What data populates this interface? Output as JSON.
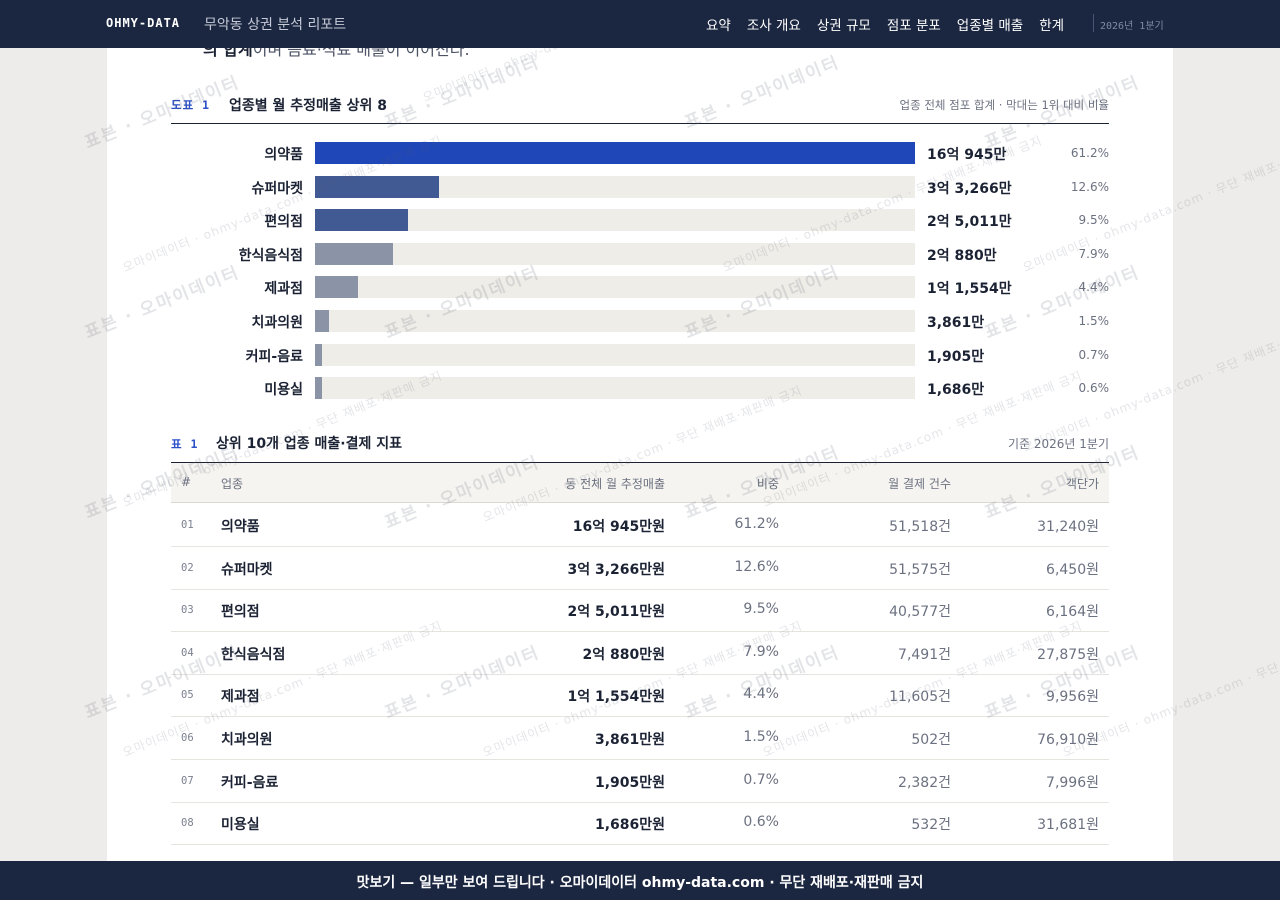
{
  "header": {
    "brand": "OHMY-DATA",
    "report_title": "무악동 상권 분석 리포트",
    "nav": [
      "요약",
      "조사 개요",
      "상권 규모",
      "점포 분포",
      "업종별 매출",
      "한계"
    ],
    "period_tag": "2026년 1분기"
  },
  "intro": {
    "cut_bold": "의 합계",
    "cut_rest": "이며 음료·식료 매출이 이어진다."
  },
  "figure": {
    "tag": "도표 1",
    "title": "업종별 월 추정매출 상위 8",
    "note": "업종 전체 점포 합계 · 막대는 1위 대비 비율"
  },
  "chart_data": {
    "type": "bar",
    "title": "업종별 월 추정매출 상위 8",
    "categories": [
      "의약품",
      "슈퍼마켓",
      "편의점",
      "한식음식점",
      "제과점",
      "치과의원",
      "커피-음료",
      "미용실"
    ],
    "values": [
      160945,
      33266,
      25011,
      20880,
      11554,
      3861,
      1905,
      1686
    ],
    "value_labels": [
      "16억 945만",
      "3억 3,266만",
      "2억 5,011만",
      "2억 880만",
      "1억 1,554만",
      "3,861만",
      "1,905만",
      "1,686만"
    ],
    "share_labels": [
      "61.2%",
      "12.6%",
      "9.5%",
      "7.9%",
      "4.4%",
      "1.5%",
      "0.7%",
      "0.6%"
    ],
    "unit": "만원",
    "colors": [
      "#1f47b8",
      "#425a93",
      "#425a93",
      "#8b93a6",
      "#8b93a6",
      "#8b93a6",
      "#8b93a6",
      "#8b93a6"
    ],
    "track_color": "#efede8"
  },
  "table": {
    "tag": "표 1",
    "title": "상위 10개 업종 매출·결제 지표",
    "note": "기준 2026년 1분기",
    "columns": [
      "#",
      "업종",
      "동 전체 월 추정매출",
      "비중",
      "월 결제 건수",
      "객단가"
    ],
    "rows": [
      {
        "num": "01",
        "name": "의약품",
        "sales": "16억 945만원",
        "share": "61.2%",
        "count": "51,518건",
        "ticket": "31,240원"
      },
      {
        "num": "02",
        "name": "슈퍼마켓",
        "sales": "3억 3,266만원",
        "share": "12.6%",
        "count": "51,575건",
        "ticket": "6,450원"
      },
      {
        "num": "03",
        "name": "편의점",
        "sales": "2억 5,011만원",
        "share": "9.5%",
        "count": "40,577건",
        "ticket": "6,164원"
      },
      {
        "num": "04",
        "name": "한식음식점",
        "sales": "2억 880만원",
        "share": "7.9%",
        "count": "7,491건",
        "ticket": "27,875원"
      },
      {
        "num": "05",
        "name": "제과점",
        "sales": "1억 1,554만원",
        "share": "4.4%",
        "count": "11,605건",
        "ticket": "9,956원"
      },
      {
        "num": "06",
        "name": "치과의원",
        "sales": "3,861만원",
        "share": "1.5%",
        "count": "502건",
        "ticket": "76,910원"
      },
      {
        "num": "07",
        "name": "커피-음료",
        "sales": "1,905만원",
        "share": "0.7%",
        "count": "2,382건",
        "ticket": "7,996원"
      },
      {
        "num": "08",
        "name": "미용실",
        "sales": "1,686만원",
        "share": "0.6%",
        "count": "532건",
        "ticket": "31,681원"
      }
    ]
  },
  "watermark": {
    "primary": "표본 · 오마이데이터",
    "secondary": "오마이데이터 · ohmy-data.com · 무단 재배포·재판매 금지"
  },
  "footer": {
    "banner": "맛보기 — 일부만 보여 드립니다 · 오마이데이터 ohmy-data.com · 무단 재배포·재판매 금지"
  }
}
